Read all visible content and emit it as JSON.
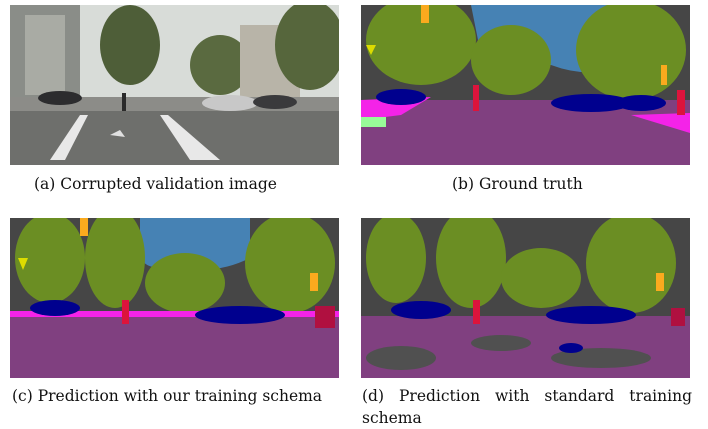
{
  "figure": {
    "panels": [
      {
        "id": "a",
        "caption": "(a) Corrupted validation image"
      },
      {
        "id": "b",
        "caption": "(b) Ground truth"
      },
      {
        "id": "c",
        "caption": "(c) Prediction with our training schema"
      },
      {
        "id": "d",
        "caption": "(d) Prediction with standard training schema"
      }
    ],
    "class_colors": {
      "sky": "#4682b4",
      "vegetation": "#6b8e23",
      "building": "#464646",
      "road": "#804080",
      "sidewalk": "#f423e8",
      "car": "#00008e",
      "person": "#dc143c",
      "traffic_sign": "#dcdc00",
      "traffic_light": "#faaa1e",
      "pole": "#999999"
    }
  }
}
